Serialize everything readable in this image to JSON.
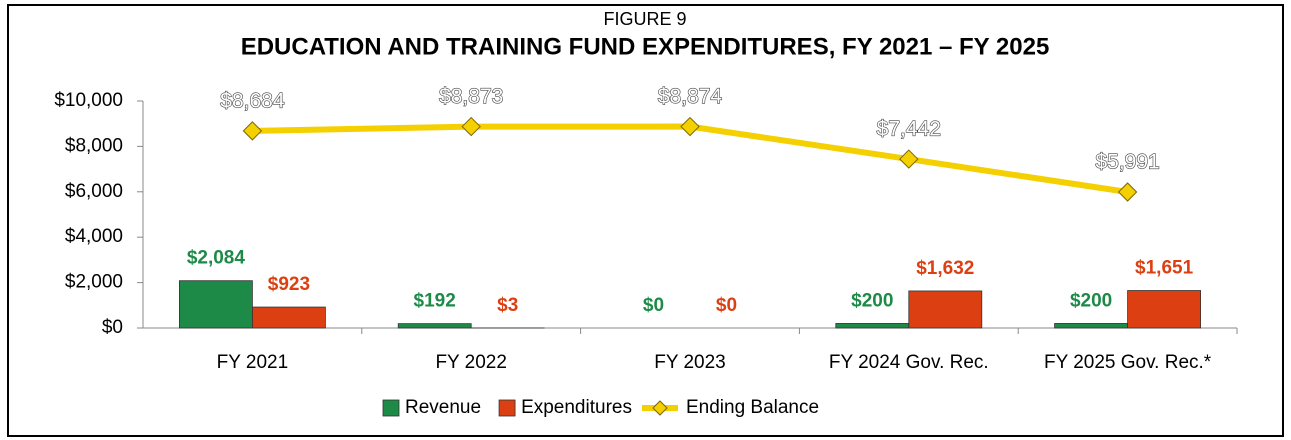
{
  "chart_data": {
    "type": "bar",
    "subtitle": "FIGURE 9",
    "title": "EDUCATION AND TRAINING FUND EXPENDITURES, FY 2021 – FY 2025",
    "categories": [
      "FY 2021",
      "FY 2022",
      "FY 2023",
      "FY 2024 Gov. Rec.",
      "FY 2025 Gov. Rec.*"
    ],
    "series": [
      {
        "name": "Revenue",
        "type": "bar",
        "color": "#1d8a47",
        "values": [
          2084,
          192,
          0,
          200,
          200
        ],
        "value_labels": [
          "$2,084",
          "$192",
          "$0",
          "$200",
          "$200"
        ]
      },
      {
        "name": "Expenditures",
        "type": "bar",
        "color": "#dc4012",
        "values": [
          923,
          3,
          0,
          1632,
          1651
        ],
        "value_labels": [
          "$923",
          "$3",
          "$0",
          "$1,632",
          "$1,651"
        ]
      },
      {
        "name": "Ending Balance",
        "type": "line",
        "color": "#f5d000",
        "values": [
          8684,
          8873,
          8874,
          7442,
          5991
        ],
        "value_labels": [
          "$8,684",
          "$8,873",
          "$8,874",
          "$7,442",
          "$5,991"
        ]
      }
    ],
    "ylim": [
      0,
      10000
    ],
    "yticks": [
      {
        "value": 0,
        "label": "$0"
      },
      {
        "value": 2000,
        "label": "$2,000"
      },
      {
        "value": 4000,
        "label": "$4,000"
      },
      {
        "value": 6000,
        "label": "$6,000"
      },
      {
        "value": 8000,
        "label": "$8,000"
      },
      {
        "value": 10000,
        "label": "$10,000"
      }
    ],
    "grid": false,
    "legend": "bottom"
  }
}
